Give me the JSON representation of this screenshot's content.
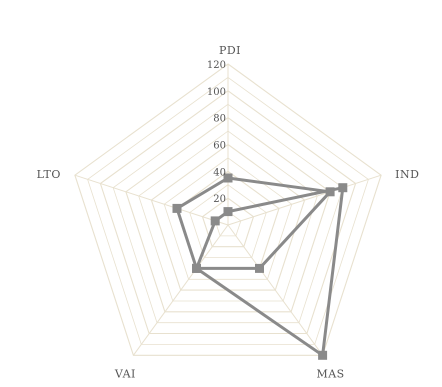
{
  "chart_data": {
    "type": "radar",
    "title": "",
    "axes": [
      "PDI",
      "IND",
      "MAS",
      "VAI",
      "LTO"
    ],
    "ticks": [
      "20",
      "40",
      "60",
      "80",
      "100",
      "120"
    ],
    "range": [
      0,
      120
    ],
    "grid": true,
    "legend": "none",
    "series": [
      {
        "values": [
          35,
          80,
          40,
          40,
          40
        ],
        "color": "#8a8a8a",
        "marker": "square"
      },
      {
        "values": [
          10,
          90,
          120,
          40,
          10
        ],
        "color": "#8a8a8a",
        "marker": "square"
      }
    ],
    "colors": {
      "grid": "#e8e1cf",
      "spoke": "#e8e1cf",
      "series_line": "#8a8a8a",
      "text": "#555555"
    }
  }
}
